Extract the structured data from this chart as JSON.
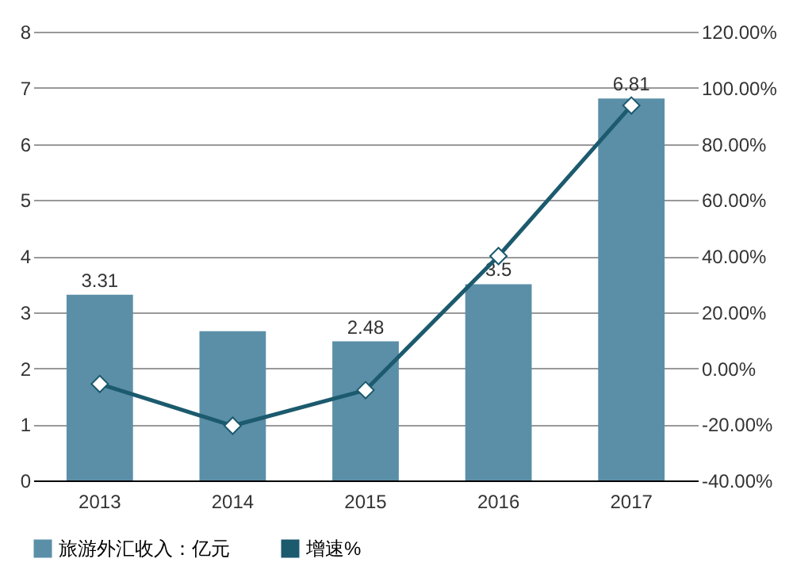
{
  "chart_data": {
    "type": "bar",
    "categories": [
      "2013",
      "2014",
      "2015",
      "2016",
      "2017"
    ],
    "series": [
      {
        "name": "旅游外汇收入：亿元",
        "color": "#5b8fa8",
        "values": [
          3.31,
          2.66,
          2.48,
          3.5,
          6.81
        ],
        "value_labels": [
          "3.31",
          null,
          "2.48",
          "3.5",
          "6.81"
        ]
      },
      {
        "name": "增速%",
        "type": "line",
        "axis": "y2",
        "color": "#1c5a6e",
        "marker": "diamond",
        "values": [
          -5.6,
          -20.5,
          -7.8,
          40.0,
          93.7
        ]
      }
    ],
    "ylim": [
      0,
      8
    ],
    "yticks": [
      0,
      1,
      2,
      3,
      4,
      5,
      6,
      7,
      8
    ],
    "y2lim": [
      -40,
      120
    ],
    "y2ticks": [
      {
        "value": -40,
        "label": "-40.00%"
      },
      {
        "value": -20,
        "label": "-20.00%"
      },
      {
        "value": 0,
        "label": "0.00%"
      },
      {
        "value": 20,
        "label": "20.00%"
      },
      {
        "value": 40,
        "label": "40.00%"
      },
      {
        "value": 60,
        "label": "60.00%"
      },
      {
        "value": 80,
        "label": "80.00%"
      },
      {
        "value": 100,
        "label": "100.00%"
      },
      {
        "value": 120,
        "label": "120.00%"
      }
    ],
    "grid": "y",
    "legend": "bottom"
  }
}
